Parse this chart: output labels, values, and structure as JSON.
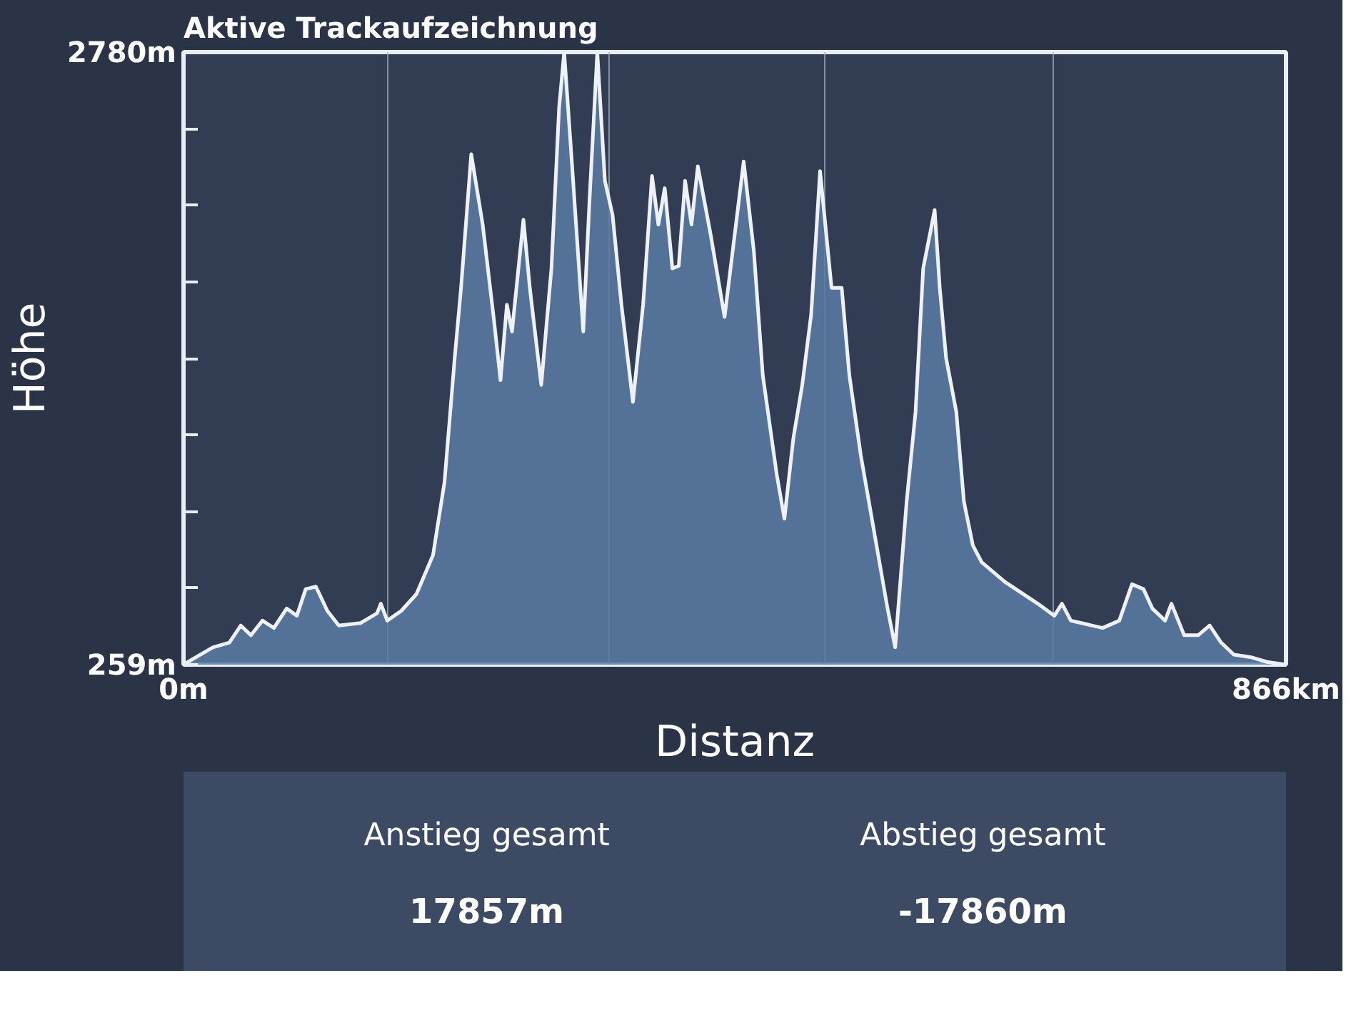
{
  "chart_data": {
    "type": "area",
    "title": "Aktive Trackaufzeichnung",
    "xlabel": "Distanz",
    "ylabel": "Höhe",
    "x": [
      0,
      10,
      23,
      36,
      45,
      53,
      62,
      71,
      81,
      89,
      96,
      104,
      113,
      122,
      139,
      152,
      155,
      160,
      171,
      183,
      196,
      205,
      213,
      218,
      226,
      235,
      244,
      249,
      254,
      258,
      267,
      272,
      281,
      289,
      295,
      299,
      305,
      314,
      319,
      325,
      331,
      337,
      344,
      353,
      361,
      368,
      373,
      378,
      384,
      389,
      394,
      399,
      404,
      414,
      425,
      440,
      448,
      455,
      466,
      472,
      479,
      486,
      493,
      500,
      509,
      517,
      523,
      532,
      543,
      553,
      559,
      568,
      575,
      581,
      590,
      594,
      599,
      607,
      613,
      620,
      627,
      645,
      671,
      684,
      690,
      697,
      722,
      735,
      745,
      754,
      761,
      771,
      776,
      786,
      797,
      806,
      815,
      825,
      838,
      851,
      866
    ],
    "series": [
      {
        "color": "#5b7aa5",
        "values": [
          259,
          290,
          330,
          350,
          420,
          380,
          440,
          410,
          490,
          460,
          570,
          580,
          480,
          420,
          430,
          470,
          510,
          440,
          480,
          550,
          710,
          1010,
          1520,
          1810,
          2360,
          2070,
          1670,
          1430,
          1740,
          1630,
          2090,
          1810,
          1410,
          1890,
          2550,
          2780,
          2330,
          1630,
          2180,
          2780,
          2250,
          2110,
          1740,
          1340,
          1740,
          2270,
          2070,
          2220,
          1890,
          1900,
          2250,
          2070,
          2310,
          2030,
          1690,
          2330,
          1960,
          1450,
          1040,
          860,
          1190,
          1410,
          1700,
          2290,
          1810,
          1810,
          1450,
          1120,
          790,
          490,
          330,
          930,
          1300,
          1890,
          2130,
          1810,
          1520,
          1300,
          930,
          750,
          680,
          600,
          510,
          460,
          510,
          440,
          410,
          440,
          590,
          570,
          490,
          440,
          510,
          380,
          380,
          420,
          350,
          300,
          290,
          270,
          259
        ]
      }
    ],
    "xlim": [
      0,
      866
    ],
    "ylim": [
      259,
      2780
    ],
    "xticks": [
      {
        "value": 0,
        "label": "0m"
      },
      {
        "value": 160,
        "label": null
      },
      {
        "value": 334,
        "label": null
      },
      {
        "value": 504,
        "label": null
      },
      {
        "value": 683,
        "label": null
      },
      {
        "value": 866,
        "label": "866km"
      }
    ],
    "yticks": [
      {
        "value": 259,
        "label": "259m"
      },
      {
        "value": 574,
        "label": null
      },
      {
        "value": 889,
        "label": null
      },
      {
        "value": 1204,
        "label": null
      },
      {
        "value": 1519,
        "label": null
      },
      {
        "value": 1835,
        "label": null
      },
      {
        "value": 2150,
        "label": null
      },
      {
        "value": 2465,
        "label": null
      },
      {
        "value": 2780,
        "label": "2780m"
      }
    ],
    "grid": "x",
    "annotations": [
      "Anstieg gesamt",
      "17857m",
      "Abstieg gesamt",
      "-17860m"
    ]
  }
}
